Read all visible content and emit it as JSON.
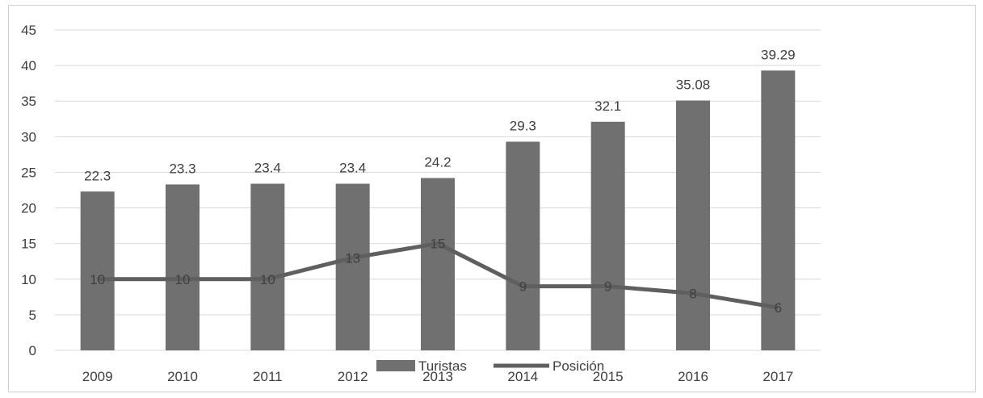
{
  "chart_data": {
    "type": "bar",
    "categories": [
      "2009",
      "2010",
      "2011",
      "2012",
      "2013",
      "2014",
      "2015",
      "2016",
      "2017"
    ],
    "series": [
      {
        "name": "Turistas",
        "type": "bar",
        "values": [
          22.3,
          23.3,
          23.4,
          23.4,
          24.2,
          29.3,
          32.1,
          35.08,
          39.29
        ],
        "labels": [
          "22.3",
          "23.3",
          "23.4",
          "23.4",
          "24.2",
          "29.3",
          "32.1",
          "35.08",
          "39.29"
        ],
        "color": "#707070"
      },
      {
        "name": "Posición",
        "type": "line",
        "values": [
          10,
          10,
          10,
          13,
          15,
          9,
          9,
          8,
          6
        ],
        "labels": [
          "10",
          "10",
          "10",
          "13",
          "15",
          "9",
          "9",
          "8",
          "6"
        ],
        "color": "#5f5f5f"
      }
    ],
    "y_ticks": [
      "0",
      "5",
      "10",
      "15",
      "20",
      "25",
      "30",
      "35",
      "40",
      "45"
    ],
    "ylim": [
      0,
      45
    ],
    "grid": true,
    "legend_position": "bottom"
  }
}
